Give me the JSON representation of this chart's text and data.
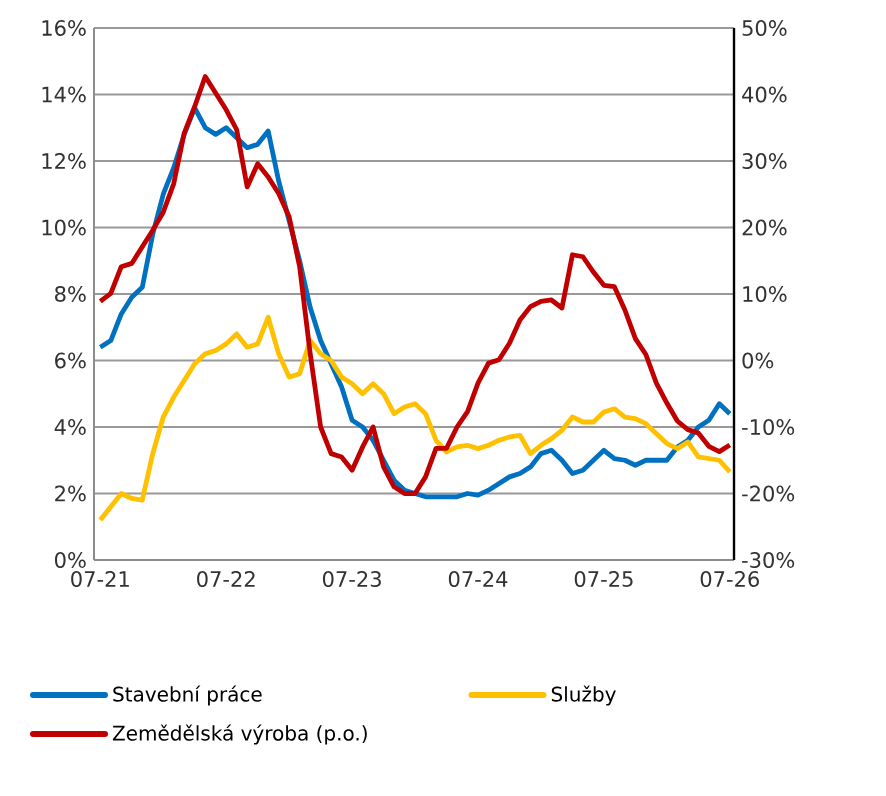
{
  "chart_data": {
    "type": "line",
    "categories": [
      "07-21",
      null,
      null,
      null,
      null,
      null,
      null,
      null,
      null,
      null,
      null,
      null,
      "07-22",
      null,
      null,
      null,
      null,
      null,
      null,
      null,
      null,
      null,
      null,
      null,
      "07-23",
      null,
      null,
      null,
      null,
      null,
      null,
      null,
      null,
      null,
      null,
      null,
      "07-24",
      null,
      null,
      null,
      null,
      null,
      null,
      null,
      null,
      null,
      null,
      null,
      "07-25",
      null,
      null,
      null,
      null,
      null,
      null,
      null,
      null,
      null,
      null,
      null,
      "07-26"
    ],
    "series": [
      {
        "name": "Stavební práce",
        "color": "#0070c0",
        "values": [
          6.4,
          6.6,
          7.4,
          7.9,
          8.2,
          9.8,
          11.0,
          11.8,
          12.8,
          13.6,
          13.0,
          12.8,
          13.0,
          12.7,
          12.4,
          12.5,
          12.9,
          11.4,
          10.2,
          9.0,
          7.6,
          6.6,
          5.9,
          5.2,
          4.2,
          4.0,
          3.6,
          3.0,
          2.4,
          2.1,
          2.0,
          1.9,
          1.9,
          1.9,
          1.9,
          2.0,
          1.95,
          2.1,
          2.3,
          2.5,
          2.6,
          2.8,
          3.2,
          3.3,
          3.0,
          2.6,
          2.7,
          3.0,
          3.3,
          3.05,
          3.0,
          2.85,
          3.0,
          3.0,
          3.0,
          3.4,
          3.6,
          4.0,
          4.2,
          4.7,
          4.4
        ]
      },
      {
        "name": "Služby",
        "color": "#ffc000",
        "values": [
          1.2,
          1.6,
          2.0,
          1.85,
          1.8,
          3.2,
          4.3,
          4.9,
          5.4,
          5.9,
          6.2,
          6.3,
          6.5,
          6.8,
          6.4,
          6.5,
          7.3,
          6.2,
          5.5,
          5.6,
          6.6,
          6.2,
          6.0,
          5.5,
          5.3,
          5.0,
          5.3,
          5.0,
          4.4,
          4.6,
          4.7,
          4.4,
          3.6,
          3.25,
          3.4,
          3.45,
          3.35,
          3.45,
          3.6,
          3.7,
          3.75,
          3.2,
          3.45,
          3.65,
          3.9,
          4.3,
          4.15,
          4.15,
          4.45,
          4.55,
          4.3,
          4.25,
          4.1,
          3.8,
          3.5,
          3.35,
          3.55,
          3.1,
          3.05,
          3.0,
          2.65
        ]
      },
      {
        "name": "Zemědělská výroba (p.o.)",
        "color": "#c00000",
        "axis": "y2",
        "values": [
          8.9,
          10.1,
          14.1,
          14.6,
          17.1,
          19.6,
          22.3,
          26.6,
          34.2,
          38.2,
          42.7,
          40.2,
          37.7,
          34.7,
          26.1,
          29.6,
          27.6,
          25.1,
          21.6,
          14.1,
          1.1,
          -10,
          -14,
          -14.5,
          -16.5,
          -13,
          -10,
          -16,
          -19,
          -20,
          -20,
          -17.5,
          -13.2,
          -13.2,
          -10,
          -7.7,
          -3.4,
          -0.4,
          0.1,
          2.6,
          6.1,
          8.1,
          8.9,
          9.1,
          7.9,
          15.9,
          15.6,
          13.3,
          11.3,
          11.1,
          7.6,
          3.3,
          0.9,
          -3.4,
          -6.4,
          -9.1,
          -10.4,
          -10.9,
          -12.9,
          -13.7,
          -12.7
        ]
      }
    ],
    "ylim": [
      0,
      16
    ],
    "yticks": [
      {
        "value": 0,
        "label": "0%"
      },
      {
        "value": 2,
        "label": "2%"
      },
      {
        "value": 4,
        "label": "4%"
      },
      {
        "value": 6,
        "label": "6%"
      },
      {
        "value": 8,
        "label": "8%"
      },
      {
        "value": 10,
        "label": "10%"
      },
      {
        "value": 12,
        "label": "12%"
      },
      {
        "value": 14,
        "label": "14%"
      },
      {
        "value": 16,
        "label": "16%"
      }
    ],
    "y2lim": [
      -30,
      50
    ],
    "y2ticks": [
      {
        "value": -30,
        "label": "-30%"
      },
      {
        "value": -20,
        "label": "-20%"
      },
      {
        "value": -10,
        "label": "-10%"
      },
      {
        "value": 0,
        "label": "0%"
      },
      {
        "value": 10,
        "label": "10%"
      },
      {
        "value": 20,
        "label": "20%"
      },
      {
        "value": 30,
        "label": "30%"
      },
      {
        "value": 40,
        "label": "40%"
      },
      {
        "value": 50,
        "label": "50%"
      }
    ],
    "grid": "y",
    "legend": "bottom",
    "marker": "none",
    "line_style": "solid"
  }
}
